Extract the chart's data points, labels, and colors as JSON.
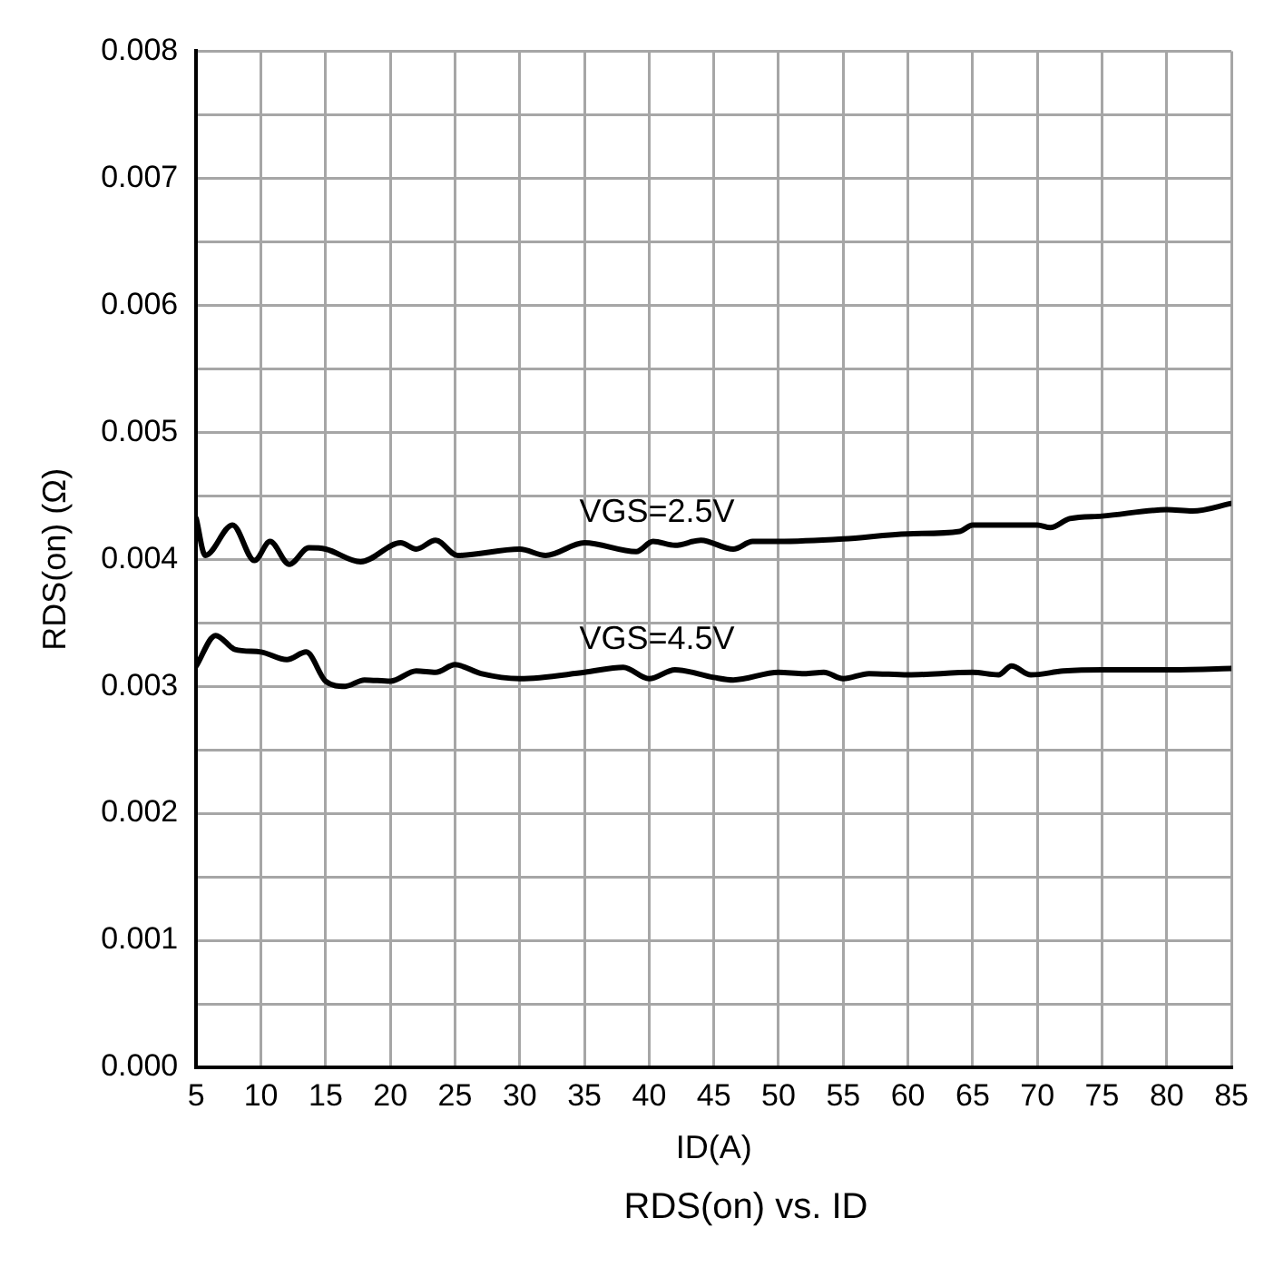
{
  "chart_data": {
    "type": "line",
    "title": "RDS(on) vs. ID",
    "xlabel": "ID(A)",
    "ylabel": "RDS(on) (Ω)",
    "xlim": [
      5,
      85
    ],
    "xticks": [
      5,
      10,
      15,
      20,
      25,
      30,
      35,
      40,
      45,
      50,
      55,
      60,
      65,
      70,
      75,
      80,
      85
    ],
    "ylim": [
      0,
      0.008
    ],
    "yticks": [
      {
        "value": 0,
        "label": "0.000"
      },
      {
        "value": 0.0005,
        "label": null
      },
      {
        "value": 0.001,
        "label": "0.001"
      },
      {
        "value": 0.0015,
        "label": null
      },
      {
        "value": 0.002,
        "label": "0.002"
      },
      {
        "value": 0.0025,
        "label": null
      },
      {
        "value": 0.003,
        "label": "0.003"
      },
      {
        "value": 0.0035,
        "label": null
      },
      {
        "value": 0.004,
        "label": "0.004"
      },
      {
        "value": 0.0045,
        "label": null
      },
      {
        "value": 0.005,
        "label": "0.005"
      },
      {
        "value": 0.0055,
        "label": null
      },
      {
        "value": 0.006,
        "label": "0.006"
      },
      {
        "value": 0.0065,
        "label": null
      },
      {
        "value": 0.007,
        "label": "0.007"
      },
      {
        "value": 0.0075,
        "label": null
      },
      {
        "value": 0.008,
        "label": "0.008"
      }
    ],
    "grid": true,
    "legend": false,
    "marker": "none",
    "line_style": "solid",
    "series": [
      {
        "name": "VGS=2.5V",
        "color": "#000000",
        "x": [
          5,
          5.7,
          7.8,
          9.5,
          10.7,
          12.2,
          13.7,
          15,
          17.7,
          20.8,
          22,
          23.5,
          25.2,
          30,
          32,
          35,
          39,
          40.3,
          42,
          44,
          46.5,
          48,
          50,
          55,
          60,
          64,
          65,
          70,
          71,
          72.5,
          75,
          80,
          82,
          85
        ],
        "values": [
          0.00432,
          0.00403,
          0.00427,
          0.00399,
          0.00414,
          0.00396,
          0.00409,
          0.00408,
          0.00398,
          0.00413,
          0.00408,
          0.00415,
          0.00403,
          0.00408,
          0.00403,
          0.00413,
          0.00406,
          0.00414,
          0.00411,
          0.00415,
          0.00408,
          0.00414,
          0.00414,
          0.00416,
          0.0042,
          0.00422,
          0.00427,
          0.00427,
          0.00425,
          0.00432,
          0.00434,
          0.00439,
          0.00438,
          0.00444
        ]
      },
      {
        "name": "VGS=4.5V",
        "color": "#000000",
        "x": [
          5,
          6.5,
          8,
          10,
          12,
          13.5,
          15,
          16.5,
          18,
          20,
          22,
          23.5,
          25,
          27,
          30,
          35,
          38,
          40,
          42,
          45,
          46.5,
          50,
          52,
          53.5,
          55,
          57,
          60,
          65,
          67,
          68,
          69.5,
          72,
          75,
          80,
          85
        ],
        "values": [
          0.00316,
          0.0034,
          0.00329,
          0.00327,
          0.00321,
          0.00327,
          0.00304,
          0.003,
          0.00305,
          0.00304,
          0.00312,
          0.00311,
          0.00317,
          0.0031,
          0.00306,
          0.00311,
          0.00315,
          0.00306,
          0.00313,
          0.00307,
          0.00305,
          0.00311,
          0.0031,
          0.00311,
          0.00306,
          0.0031,
          0.00309,
          0.00311,
          0.00309,
          0.00316,
          0.00309,
          0.00312,
          0.00313,
          0.00313,
          0.00314
        ]
      }
    ]
  }
}
